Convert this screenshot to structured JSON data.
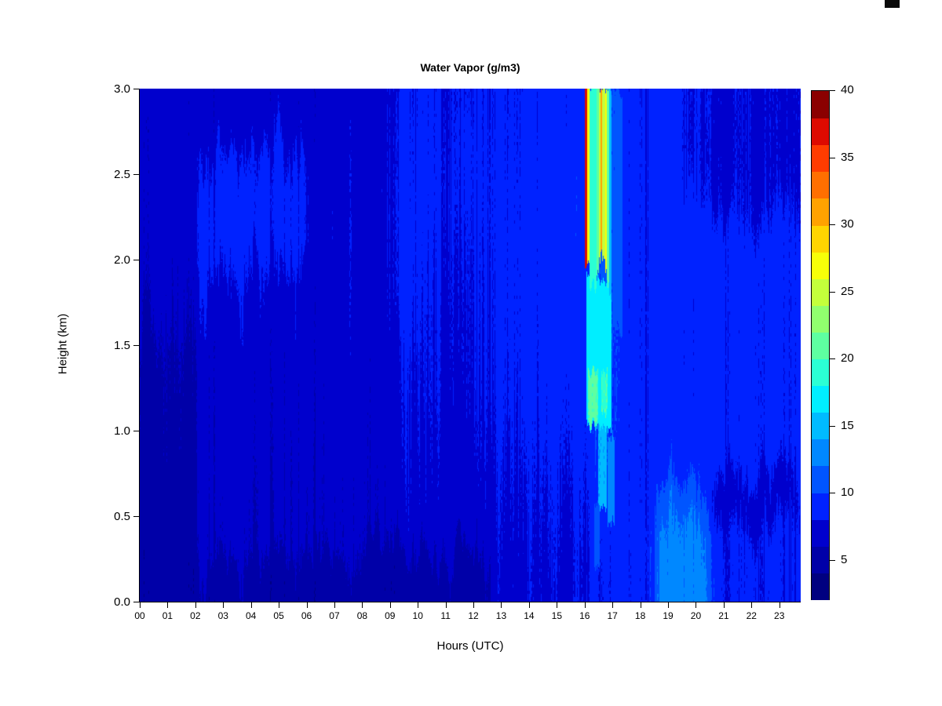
{
  "page": {
    "background": "#ffffff"
  },
  "corner_mark": {
    "color": "#0a0a0a"
  },
  "chart_data": {
    "type": "heatmap",
    "title": "Water Vapor (g/m3)",
    "xlabel": "Hours (UTC)",
    "ylabel": "Height (km)",
    "x_ticks": [
      "00",
      "01",
      "02",
      "03",
      "04",
      "05",
      "06",
      "07",
      "08",
      "09",
      "10",
      "11",
      "12",
      "13",
      "14",
      "15",
      "16",
      "17",
      "18",
      "19",
      "20",
      "21",
      "22",
      "23"
    ],
    "y_ticks": [
      "0.0",
      "0.5",
      "1.0",
      "1.5",
      "2.0",
      "2.5",
      "3.0"
    ],
    "x_range_hours": [
      0,
      23.77
    ],
    "y_range_km": [
      0,
      3
    ],
    "grid_on": false,
    "legend_position": "right-colorbar",
    "colorbar": {
      "min": 2,
      "max": 40,
      "tick_values": [
        5,
        10,
        15,
        20,
        25,
        30,
        35,
        40
      ],
      "palette": [
        "#000080",
        "#0000A8",
        "#0000CD",
        "#0022FF",
        "#0055FF",
        "#0088FF",
        "#00BBFF",
        "#00EEFF",
        "#2BFFD4",
        "#5EFFA1",
        "#91FF6E",
        "#C4FF3B",
        "#F7FF08",
        "#FFD500",
        "#FFA200",
        "#FF6F00",
        "#FF3C00",
        "#DD0A00",
        "#8B0000"
      ]
    },
    "grid": {
      "cols": 48,
      "rows": 12,
      "hour_step": 0.5,
      "km_step": 0.25,
      "origin": "bottom-left",
      "units": "g/m3",
      "values": [
        [
          4.8,
          4.8,
          4.8,
          4.8,
          4.8,
          4.8,
          4.8,
          4.8,
          4.8,
          4.8,
          4.8,
          4.8,
          4.8,
          4.8,
          4.8,
          4.8,
          4.8,
          4.8,
          4.8,
          4.8,
          4.8,
          4.8,
          4.8,
          4.8,
          4.8,
          7.6,
          7.6,
          7.6,
          7.6,
          7.6,
          7.6,
          7.6,
          8.6,
          8.6,
          8.6,
          8.6,
          8.6,
          12.3,
          12.3,
          12.3,
          12.3,
          8.2,
          8.2,
          8.2,
          8.2,
          8.2,
          8.2,
          8.2
        ],
        [
          5.0,
          5.0,
          5.0,
          5.0,
          6.3,
          6.3,
          6.3,
          6.3,
          6.3,
          6.3,
          6.3,
          6.3,
          6.3,
          6.3,
          6.3,
          6.3,
          6.3,
          6.3,
          7.0,
          7.0,
          7.0,
          7.0,
          7.0,
          7.0,
          7.0,
          7.8,
          7.8,
          7.8,
          7.8,
          7.8,
          7.8,
          7.8,
          8.8,
          8.8,
          8.8,
          8.8,
          8.8,
          11.8,
          11.8,
          11.8,
          11.8,
          8.3,
          8.3,
          8.3,
          8.3,
          8.3,
          8.3,
          8.3
        ],
        [
          5.2,
          5.2,
          5.2,
          5.2,
          6.5,
          6.5,
          6.5,
          6.5,
          6.5,
          6.5,
          6.5,
          6.5,
          6.5,
          6.5,
          6.5,
          6.5,
          6.5,
          6.5,
          7.3,
          7.3,
          7.3,
          7.3,
          7.3,
          7.3,
          7.3,
          8.0,
          8.0,
          8.0,
          8.0,
          8.0,
          8.0,
          8.0,
          9.0,
          9.5,
          9.0,
          8.6,
          8.6,
          9.5,
          9.5,
          9.5,
          9.5,
          7.0,
          7.0,
          7.0,
          7.0,
          7.0,
          7.0,
          8.0
        ],
        [
          5.4,
          5.4,
          5.4,
          5.4,
          6.6,
          6.6,
          6.6,
          6.6,
          6.6,
          6.6,
          6.6,
          6.6,
          6.6,
          6.6,
          6.6,
          6.6,
          6.6,
          6.6,
          7.5,
          7.5,
          7.5,
          7.5,
          7.5,
          7.5,
          7.5,
          8.2,
          8.2,
          8.2,
          8.2,
          8.2,
          8.2,
          8.2,
          9.5,
          10.0,
          9.2,
          8.6,
          8.6,
          8.5,
          8.5,
          8.5,
          8.5,
          8.5,
          8.5,
          8.5,
          8.5,
          8.5,
          8.5,
          8.5
        ],
        [
          5.5,
          5.5,
          5.5,
          5.5,
          6.7,
          6.7,
          6.7,
          6.7,
          6.7,
          6.7,
          6.7,
          6.7,
          6.7,
          6.7,
          6.7,
          6.7,
          6.7,
          6.7,
          7.7,
          7.7,
          7.7,
          7.7,
          7.7,
          7.7,
          7.7,
          8.5,
          8.5,
          8.5,
          8.5,
          8.5,
          8.5,
          8.5,
          10.0,
          10.5,
          9.5,
          8.6,
          8.6,
          8.5,
          8.5,
          8.5,
          8.5,
          8.5,
          8.5,
          8.5,
          8.5,
          8.5,
          8.5,
          8.5
        ],
        [
          5.7,
          5.7,
          5.7,
          5.7,
          6.8,
          6.8,
          6.8,
          6.8,
          6.8,
          6.8,
          6.8,
          6.8,
          6.8,
          6.8,
          6.8,
          6.8,
          6.8,
          6.8,
          7.8,
          7.8,
          7.8,
          7.8,
          7.8,
          7.8,
          7.8,
          8.6,
          8.6,
          8.6,
          8.6,
          8.6,
          8.6,
          8.6,
          10.0,
          10.5,
          9.5,
          8.6,
          8.6,
          8.5,
          8.5,
          8.5,
          8.5,
          8.5,
          8.5,
          8.5,
          8.5,
          8.5,
          8.5,
          8.5
        ],
        [
          6.3,
          6.3,
          6.3,
          6.3,
          6.9,
          6.9,
          6.9,
          6.9,
          6.9,
          6.9,
          6.9,
          6.9,
          6.9,
          6.9,
          6.9,
          6.9,
          6.9,
          6.9,
          8.4,
          8.4,
          7.9,
          7.9,
          7.9,
          7.9,
          7.9,
          8.8,
          8.8,
          8.8,
          8.8,
          8.8,
          8.8,
          8.8,
          10.5,
          11.0,
          9.5,
          8.6,
          8.6,
          8.5,
          8.5,
          8.5,
          8.5,
          8.5,
          8.5,
          8.5,
          8.5,
          8.5,
          8.5,
          8.5
        ],
        [
          6.7,
          6.7,
          6.7,
          6.7,
          7.6,
          7.6,
          7.6,
          7.6,
          7.6,
          7.6,
          7.6,
          7.0,
          7.0,
          7.0,
          7.0,
          7.0,
          7.0,
          7.0,
          8.5,
          8.5,
          8.0,
          8.0,
          8.0,
          8.0,
          8.0,
          8.8,
          8.8,
          8.8,
          8.8,
          8.8,
          8.8,
          8.8,
          10.5,
          11.5,
          9.5,
          8.6,
          8.6,
          8.6,
          8.6,
          8.6,
          8.6,
          8.6,
          8.6,
          8.6,
          8.6,
          8.6,
          8.6,
          8.6
        ],
        [
          6.8,
          6.8,
          6.8,
          6.8,
          8.6,
          8.6,
          8.6,
          8.6,
          8.6,
          8.6,
          8.6,
          8.6,
          7.1,
          7.1,
          7.1,
          7.1,
          7.1,
          7.1,
          8.6,
          8.6,
          8.2,
          8.2,
          8.2,
          8.2,
          8.2,
          8.8,
          8.8,
          8.8,
          8.8,
          8.8,
          8.8,
          8.8,
          10.5,
          11.5,
          9.5,
          8.6,
          8.6,
          8.6,
          8.6,
          8.6,
          8.6,
          8.6,
          8.6,
          8.6,
          8.6,
          8.6,
          8.6,
          8.6
        ],
        [
          6.8,
          6.8,
          6.8,
          6.8,
          8.7,
          8.7,
          8.7,
          8.7,
          8.7,
          8.7,
          8.7,
          8.7,
          7.1,
          7.1,
          7.1,
          7.1,
          7.1,
          7.1,
          8.4,
          8.4,
          8.4,
          8.4,
          8.4,
          8.4,
          8.4,
          8.8,
          8.8,
          8.8,
          8.8,
          8.8,
          8.8,
          8.8,
          10.5,
          11.5,
          9.5,
          8.6,
          8.5,
          8.5,
          8.5,
          7.7,
          7.7,
          7.7,
          7.7,
          7.7,
          7.7,
          7.7,
          7.7,
          7.7
        ],
        [
          6.8,
          6.8,
          6.8,
          6.8,
          8.2,
          8.2,
          8.2,
          8.2,
          8.2,
          8.2,
          8.2,
          8.2,
          7.0,
          7.0,
          7.0,
          7.0,
          7.0,
          7.0,
          8.4,
          8.4,
          8.4,
          8.4,
          8.4,
          8.4,
          8.4,
          8.7,
          8.7,
          8.7,
          8.7,
          8.7,
          8.7,
          8.7,
          10.5,
          11.5,
          9.5,
          8.6,
          8.5,
          8.5,
          8.5,
          7.5,
          7.5,
          7.5,
          7.5,
          7.5,
          7.5,
          7.5,
          7.5,
          7.5
        ],
        [
          6.9,
          6.9,
          6.9,
          6.9,
          6.9,
          6.9,
          6.9,
          6.9,
          6.9,
          6.9,
          6.9,
          6.9,
          6.9,
          6.9,
          6.9,
          6.9,
          6.9,
          6.9,
          8.2,
          8.2,
          8.2,
          8.2,
          8.2,
          8.2,
          8.2,
          8.6,
          8.6,
          8.6,
          8.6,
          8.6,
          8.6,
          8.6,
          10.0,
          11.5,
          9.5,
          8.6,
          8.4,
          8.4,
          8.4,
          7.6,
          7.6,
          7.6,
          7.6,
          7.6,
          7.6,
          7.6,
          7.6,
          7.6
        ]
      ]
    },
    "plume_features": [
      {
        "h": [
          16.05,
          16.97
        ],
        "km": [
          1.0,
          1.87
        ],
        "v": 17.0
      },
      {
        "h": [
          16.12,
          16.5
        ],
        "km": [
          1.02,
          1.32
        ],
        "v": 20.3
      },
      {
        "h": [
          16.6,
          16.82
        ],
        "km": [
          1.1,
          1.34
        ],
        "v": 20.0
      },
      {
        "h": [
          16.5,
          16.8
        ],
        "km": [
          0.55,
          1.02
        ],
        "v": 14.6
      },
      {
        "h": [
          16.82,
          17.08
        ],
        "km": [
          0.45,
          0.95
        ],
        "v": 13.6
      },
      {
        "h": [
          16.35,
          16.55
        ],
        "km": [
          0.18,
          0.55
        ],
        "v": 11.0
      },
      {
        "h": [
          17.0,
          17.35
        ],
        "km": [
          1.6,
          3.0
        ],
        "v": 10.5
      },
      {
        "h": [
          16.02,
          16.08
        ],
        "km": [
          1.9,
          3.0
        ],
        "v": 36.5
      },
      {
        "h": [
          16.08,
          16.18
        ],
        "km": [
          1.95,
          3.0
        ],
        "v": 27.0
      },
      {
        "h": [
          16.18,
          16.34
        ],
        "km": [
          1.83,
          3.0
        ],
        "v": 19.5
      },
      {
        "h": [
          16.34,
          16.44
        ],
        "km": [
          1.8,
          3.0
        ],
        "v": 18.5
      },
      {
        "h": [
          16.44,
          16.51
        ],
        "km": [
          1.9,
          3.0
        ],
        "v": 21.0
      },
      {
        "h": [
          16.51,
          16.58
        ],
        "km": [
          2.0,
          3.0
        ],
        "v": 25.0
      },
      {
        "h": [
          16.58,
          16.64
        ],
        "km": [
          2.05,
          3.0
        ],
        "v": 31.0
      },
      {
        "h": [
          16.64,
          16.73
        ],
        "km": [
          2.0,
          3.0
        ],
        "v": 25.5
      },
      {
        "h": [
          16.73,
          16.81
        ],
        "km": [
          1.95,
          3.0
        ],
        "v": 27.0
      },
      {
        "h": [
          16.81,
          16.89
        ],
        "km": [
          1.85,
          3.0
        ],
        "v": 21.0
      },
      {
        "h": [
          16.89,
          16.98
        ],
        "km": [
          1.78,
          3.0
        ],
        "v": 15.0
      }
    ],
    "noise_seed": 42
  }
}
